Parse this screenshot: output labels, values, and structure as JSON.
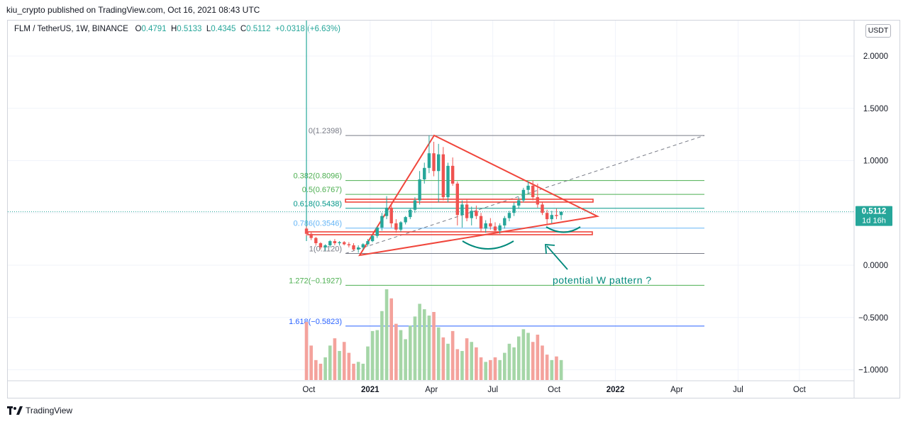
{
  "header": {
    "published": "kiu_crypto published on TradingView.com, Oct 16, 2021 08:43 UTC"
  },
  "legend": {
    "symbol": "FLM / TetherUS, 1W, BINANCE",
    "open_label": "O",
    "open": "0.4791",
    "high_label": "H",
    "high": "0.5133",
    "low_label": "L",
    "low": "0.4345",
    "close_label": "C",
    "close": "0.5112",
    "change": "+0.0318 (+6.63%)"
  },
  "currency": "USDT",
  "price_tag": {
    "price": "0.5112",
    "countdown": "1d 16h"
  },
  "annotation": "potential W pattern ?",
  "footer": {
    "brand": "TradingView"
  },
  "colors": {
    "up": "#26a69a",
    "down": "#ef5350",
    "vol_up": "#a5d6a7",
    "vol_down": "#f4a29c",
    "trend_red": "#f0453b",
    "fib_blue": "#2962ff",
    "fib_green": "#4caf50"
  },
  "chart_data": {
    "type": "candlestick",
    "title": "FLM / TetherUS, 1W, BINANCE",
    "yaxis_ticks": [
      "2.0000",
      "1.5000",
      "1.0000",
      "0.5000",
      "0.0000",
      "−0.5000",
      "−1.0000"
    ],
    "ylim": [
      -1.05,
      2.35
    ],
    "xaxis_ticks": [
      {
        "label": "Oct",
        "w": 0.5,
        "bold": false
      },
      {
        "label": "2021",
        "w": 13.5,
        "bold": true
      },
      {
        "label": "Apr",
        "w": 26.5,
        "bold": false
      },
      {
        "label": "Jul",
        "w": 39.5,
        "bold": false
      },
      {
        "label": "Oct",
        "w": 52.5,
        "bold": false
      },
      {
        "label": "2022",
        "w": 65.5,
        "bold": true
      },
      {
        "label": "Apr",
        "w": 78.5,
        "bold": false
      },
      {
        "label": "Jul",
        "w": 91.5,
        "bold": false
      },
      {
        "label": "Oct",
        "w": 104.5,
        "bold": false
      }
    ],
    "fib_levels": [
      {
        "label": "0(1.2398)",
        "value": 1.2398,
        "color": "#787b86"
      },
      {
        "label": "0.382(0.8096)",
        "value": 0.8096,
        "color": "#4caf50"
      },
      {
        "label": "0.5(0.6767)",
        "value": 0.6767,
        "color": "#4caf50"
      },
      {
        "label": "0.618(0.5438)",
        "value": 0.5438,
        "color": "#009688"
      },
      {
        "label": "0.786(0.3546)",
        "value": 0.3546,
        "color": "#64b5f6"
      },
      {
        "label": "1(0.1120)",
        "value": 0.112,
        "color": "#787b86"
      },
      {
        "label": "1.272(−0.1927)",
        "value": -0.1927,
        "color": "#4caf50"
      },
      {
        "label": "1.618(−0.5823)",
        "value": -0.5823,
        "color": "#2962ff"
      }
    ],
    "candles": [
      {
        "o": 0.35,
        "h": 0.37,
        "l": 0.28,
        "c": 0.3
      },
      {
        "o": 0.3,
        "h": 0.32,
        "l": 0.24,
        "c": 0.26
      },
      {
        "o": 0.26,
        "h": 0.27,
        "l": 0.19,
        "c": 0.21
      },
      {
        "o": 0.21,
        "h": 0.22,
        "l": 0.15,
        "c": 0.17
      },
      {
        "o": 0.17,
        "h": 0.2,
        "l": 0.14,
        "c": 0.19
      },
      {
        "o": 0.19,
        "h": 0.24,
        "l": 0.17,
        "c": 0.23
      },
      {
        "o": 0.23,
        "h": 0.25,
        "l": 0.19,
        "c": 0.21
      },
      {
        "o": 0.21,
        "h": 0.23,
        "l": 0.19,
        "c": 0.22
      },
      {
        "o": 0.22,
        "h": 0.23,
        "l": 0.19,
        "c": 0.2
      },
      {
        "o": 0.2,
        "h": 0.22,
        "l": 0.17,
        "c": 0.19
      },
      {
        "o": 0.19,
        "h": 0.21,
        "l": 0.14,
        "c": 0.15
      },
      {
        "o": 0.15,
        "h": 0.19,
        "l": 0.12,
        "c": 0.17
      },
      {
        "o": 0.17,
        "h": 0.21,
        "l": 0.15,
        "c": 0.2
      },
      {
        "o": 0.2,
        "h": 0.25,
        "l": 0.18,
        "c": 0.23
      },
      {
        "o": 0.23,
        "h": 0.29,
        "l": 0.22,
        "c": 0.28
      },
      {
        "o": 0.28,
        "h": 0.37,
        "l": 0.26,
        "c": 0.36
      },
      {
        "o": 0.36,
        "h": 0.5,
        "l": 0.33,
        "c": 0.47
      },
      {
        "o": 0.47,
        "h": 0.66,
        "l": 0.44,
        "c": 0.55
      },
      {
        "o": 0.55,
        "h": 0.58,
        "l": 0.36,
        "c": 0.4
      },
      {
        "o": 0.4,
        "h": 0.44,
        "l": 0.31,
        "c": 0.34
      },
      {
        "o": 0.34,
        "h": 0.42,
        "l": 0.32,
        "c": 0.41
      },
      {
        "o": 0.41,
        "h": 0.47,
        "l": 0.39,
        "c": 0.46
      },
      {
        "o": 0.46,
        "h": 0.54,
        "l": 0.44,
        "c": 0.53
      },
      {
        "o": 0.53,
        "h": 0.65,
        "l": 0.5,
        "c": 0.62
      },
      {
        "o": 0.62,
        "h": 0.9,
        "l": 0.58,
        "c": 0.82
      },
      {
        "o": 0.82,
        "h": 0.98,
        "l": 0.78,
        "c": 0.93
      },
      {
        "o": 0.93,
        "h": 1.24,
        "l": 0.88,
        "c": 1.07
      },
      {
        "o": 1.07,
        "h": 1.18,
        "l": 0.85,
        "c": 0.9
      },
      {
        "o": 0.9,
        "h": 1.16,
        "l": 0.6,
        "c": 1.06
      },
      {
        "o": 1.06,
        "h": 1.13,
        "l": 0.62,
        "c": 0.65
      },
      {
        "o": 0.65,
        "h": 0.98,
        "l": 0.6,
        "c": 0.95
      },
      {
        "o": 0.95,
        "h": 1.03,
        "l": 0.76,
        "c": 0.78
      },
      {
        "o": 0.78,
        "h": 0.8,
        "l": 0.38,
        "c": 0.48
      },
      {
        "o": 0.48,
        "h": 0.62,
        "l": 0.36,
        "c": 0.58
      },
      {
        "o": 0.58,
        "h": 0.63,
        "l": 0.42,
        "c": 0.45
      },
      {
        "o": 0.45,
        "h": 0.56,
        "l": 0.38,
        "c": 0.52
      },
      {
        "o": 0.52,
        "h": 0.57,
        "l": 0.44,
        "c": 0.47
      },
      {
        "o": 0.47,
        "h": 0.5,
        "l": 0.32,
        "c": 0.35
      },
      {
        "o": 0.35,
        "h": 0.43,
        "l": 0.31,
        "c": 0.4
      },
      {
        "o": 0.4,
        "h": 0.45,
        "l": 0.34,
        "c": 0.37
      },
      {
        "o": 0.37,
        "h": 0.41,
        "l": 0.3,
        "c": 0.33
      },
      {
        "o": 0.33,
        "h": 0.4,
        "l": 0.3,
        "c": 0.38
      },
      {
        "o": 0.38,
        "h": 0.47,
        "l": 0.35,
        "c": 0.45
      },
      {
        "o": 0.45,
        "h": 0.52,
        "l": 0.42,
        "c": 0.5
      },
      {
        "o": 0.5,
        "h": 0.6,
        "l": 0.47,
        "c": 0.57
      },
      {
        "o": 0.57,
        "h": 0.65,
        "l": 0.54,
        "c": 0.62
      },
      {
        "o": 0.62,
        "h": 0.74,
        "l": 0.6,
        "c": 0.72
      },
      {
        "o": 0.72,
        "h": 0.8,
        "l": 0.68,
        "c": 0.76
      },
      {
        "o": 0.76,
        "h": 0.81,
        "l": 0.62,
        "c": 0.65
      },
      {
        "o": 0.65,
        "h": 0.78,
        "l": 0.55,
        "c": 0.58
      },
      {
        "o": 0.58,
        "h": 0.6,
        "l": 0.48,
        "c": 0.5
      },
      {
        "o": 0.5,
        "h": 0.53,
        "l": 0.38,
        "c": 0.44
      },
      {
        "o": 0.44,
        "h": 0.52,
        "l": 0.4,
        "c": 0.48
      },
      {
        "o": 0.48,
        "h": 0.54,
        "l": 0.44,
        "c": 0.47
      },
      {
        "o": 0.4791,
        "h": 0.5133,
        "l": 0.4345,
        "c": 0.5112
      }
    ],
    "volumes": [
      0.64,
      0.38,
      0.22,
      0.18,
      0.25,
      0.38,
      0.46,
      0.32,
      0.42,
      0.3,
      0.18,
      0.2,
      0.18,
      0.37,
      0.54,
      0.55,
      0.76,
      1.0,
      0.9,
      0.62,
      0.55,
      0.45,
      0.6,
      0.7,
      0.84,
      0.78,
      0.71,
      0.75,
      0.58,
      0.47,
      0.4,
      0.54,
      0.34,
      0.32,
      0.46,
      0.42,
      0.36,
      0.25,
      0.2,
      0.22,
      0.25,
      0.22,
      0.3,
      0.4,
      0.36,
      0.48,
      0.56,
      0.52,
      0.42,
      0.5,
      0.38,
      0.28,
      0.22,
      0.26,
      0.22
    ]
  }
}
